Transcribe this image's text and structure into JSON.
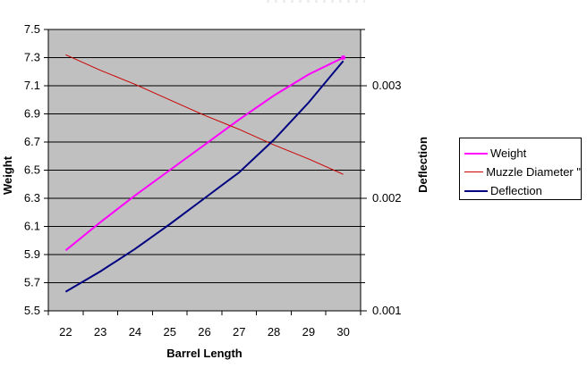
{
  "chart_data": {
    "type": "line",
    "xlabel": "Barrel Length",
    "ylabel_left": "Weight",
    "ylabel_right": "Deflection",
    "x": [
      22,
      23,
      24,
      25,
      26,
      27,
      28,
      29,
      30
    ],
    "left_axis": {
      "min": 5.5,
      "max": 7.5,
      "tick_step": 0.2,
      "tick_labels": [
        "7.5",
        "7.3",
        "7.1",
        "6.9",
        "6.7",
        "6.5",
        "6.3",
        "6.1",
        "5.9",
        "5.7",
        "5.5"
      ]
    },
    "right_axis": {
      "min": 0.001,
      "max": 0.0035,
      "gridline_step": 0.00025,
      "tick_labels": [
        "0.003",
        "0.002",
        "0.001"
      ]
    },
    "series": [
      {
        "name": "Weight",
        "axis": "left",
        "color": "#FF00FF",
        "width": 2,
        "end_marker": true,
        "values": [
          5.93,
          6.13,
          6.32,
          6.5,
          6.68,
          6.86,
          7.03,
          7.18,
          7.3
        ]
      },
      {
        "name": "Muzzle Diameter \"",
        "axis": "left",
        "color": "#CC0000",
        "width": 1,
        "end_marker": false,
        "values": [
          7.32,
          7.21,
          7.11,
          7.0,
          6.89,
          6.79,
          6.68,
          6.58,
          6.47
        ]
      },
      {
        "name": "Deflection",
        "axis": "right",
        "color": "#000080",
        "width": 2,
        "end_marker": false,
        "values": [
          0.00117,
          0.00135,
          0.00155,
          0.00177,
          0.002,
          0.00223,
          0.00252,
          0.00285,
          0.00322
        ]
      }
    ],
    "legend": {
      "position": "right"
    },
    "plot_bg": "#C0C0C0",
    "grid": "on"
  }
}
